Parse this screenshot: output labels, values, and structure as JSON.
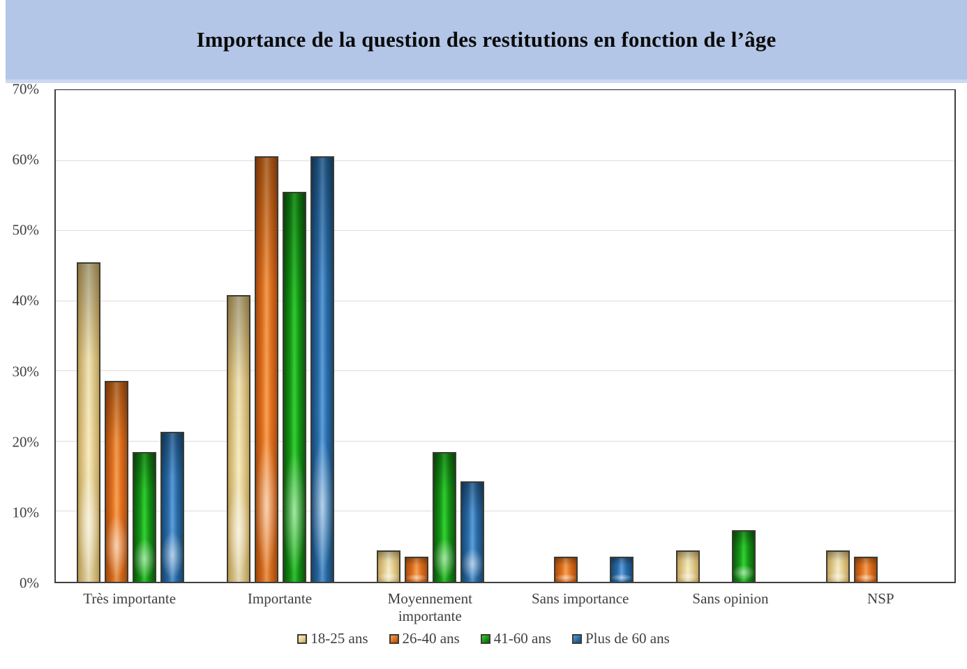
{
  "banner": {
    "title": "Importance de la question des restitutions en fonction de l’âge"
  },
  "chart_data": {
    "type": "bar",
    "title": "Importance de la question des restitutions en fonction de l’âge",
    "categories": [
      "Très importante",
      "Importante",
      "Moyennement importante",
      "Sans importance",
      "Sans opinion",
      "NSP"
    ],
    "series": [
      {
        "name": "18-25 ans",
        "values": [
          45.5,
          40.9,
          4.5,
          0,
          4.5,
          4.5
        ],
        "color": "#e5cf94",
        "color_dark": "#c6a55a",
        "color_bright": "#f7eec5"
      },
      {
        "name": "26-40 ans",
        "values": [
          28.6,
          60.7,
          3.6,
          3.6,
          0,
          3.6
        ],
        "color": "#e1701d",
        "color_dark": "#ad4e0e",
        "color_bright": "#f9a257"
      },
      {
        "name": "41-60 ans",
        "values": [
          18.5,
          55.6,
          18.5,
          0,
          7.4,
          0
        ],
        "color": "#169616",
        "color_dark": "#0b5c0b",
        "color_bright": "#33d433"
      },
      {
        "name": "Plus de 60 ans",
        "values": [
          21.4,
          60.7,
          14.3,
          3.6,
          0,
          0
        ],
        "color": "#2a6da9",
        "color_dark": "#174a77",
        "color_bright": "#5ea0dd"
      }
    ],
    "xlabel": "",
    "ylabel": "",
    "ylim": [
      0,
      70
    ],
    "ytick_step": 10,
    "yticks": [
      "0%",
      "10%",
      "20%",
      "30%",
      "40%",
      "50%",
      "60%",
      "70%"
    ],
    "grid": true,
    "legend_position": "bottom"
  },
  "colors": {
    "banner_background": "#b3c6e7",
    "plot_border": "#3f3f3f",
    "gridline": "#dcdcdc",
    "axis_text": "#3f3f3f",
    "bar_border": "#3c3b33",
    "page_background": "#ffffff"
  }
}
